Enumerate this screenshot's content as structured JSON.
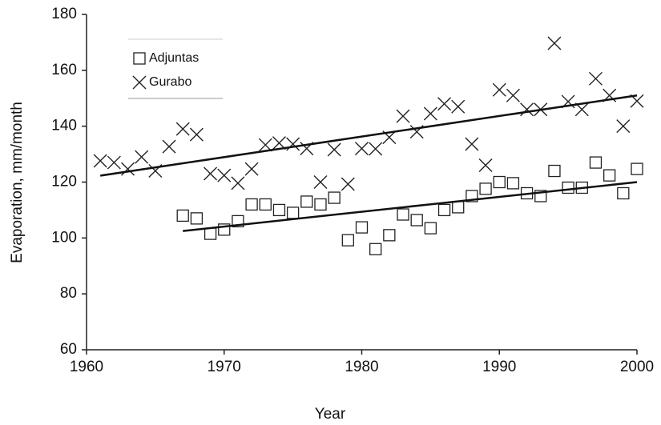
{
  "chart_data": {
    "type": "scatter",
    "x_label": "Year",
    "y_label": "Evaporation, mm/month",
    "xlim": [
      1960,
      2000
    ],
    "xticks": [
      1960,
      1970,
      1980,
      1990,
      2000
    ],
    "ylim": [
      60,
      180
    ],
    "yticks": [
      60,
      80,
      100,
      120,
      140,
      160,
      180
    ],
    "grid": false,
    "legend": "upper left",
    "series": [
      {
        "name": "Adjuntas",
        "marker": "square",
        "color": "#222222",
        "x": [
          1967,
          1968,
          1969,
          1970,
          1971,
          1972,
          1973,
          1974,
          1975,
          1976,
          1977,
          1978,
          1979,
          1980,
          1981,
          1982,
          1983,
          1984,
          1985,
          1986,
          1987,
          1988,
          1989,
          1990,
          1991,
          1992,
          1993,
          1994,
          1995,
          1996,
          1997,
          1998,
          1999,
          2000
        ],
        "values": [
          108,
          107,
          101.5,
          103,
          106,
          112,
          112,
          110,
          109,
          113,
          112,
          114.4,
          99.2,
          103.8,
          96,
          101,
          108.4,
          106.4,
          103.5,
          110,
          111,
          115,
          117.6,
          120,
          119.6,
          116,
          115,
          124,
          118,
          118,
          127,
          122.4,
          116,
          124.7
        ]
      },
      {
        "name": "Gurabo",
        "marker": "x",
        "color": "#222222",
        "x": [
          1961,
          1962,
          1963,
          1964,
          1965,
          1966,
          1967,
          1968,
          1969,
          1970,
          1971,
          1972,
          1973,
          1974,
          1975,
          1976,
          1977,
          1978,
          1979,
          1980,
          1981,
          1982,
          1983,
          1984,
          1985,
          1986,
          1987,
          1988,
          1989,
          1990,
          1991,
          1992,
          1993,
          1994,
          1995,
          1996,
          1997,
          1998,
          1999,
          2000
        ],
        "values": [
          127.6,
          127,
          124.7,
          129,
          124,
          132.7,
          139,
          137,
          123,
          122.4,
          119.6,
          124.7,
          133.3,
          134,
          133.6,
          132,
          120,
          131.6,
          119.3,
          132,
          131.9,
          136,
          143.6,
          138,
          144.5,
          148,
          147,
          133.6,
          126,
          153,
          151,
          146,
          146,
          169.7,
          148.8,
          146,
          157,
          151,
          140,
          149
        ]
      }
    ],
    "trendlines": [
      {
        "x": [
          1967,
          2000
        ],
        "values": [
          102.5,
          120
        ],
        "color": "#111111"
      },
      {
        "x": [
          1961,
          2000
        ],
        "values": [
          122.3,
          151
        ],
        "color": "#111111"
      }
    ]
  }
}
